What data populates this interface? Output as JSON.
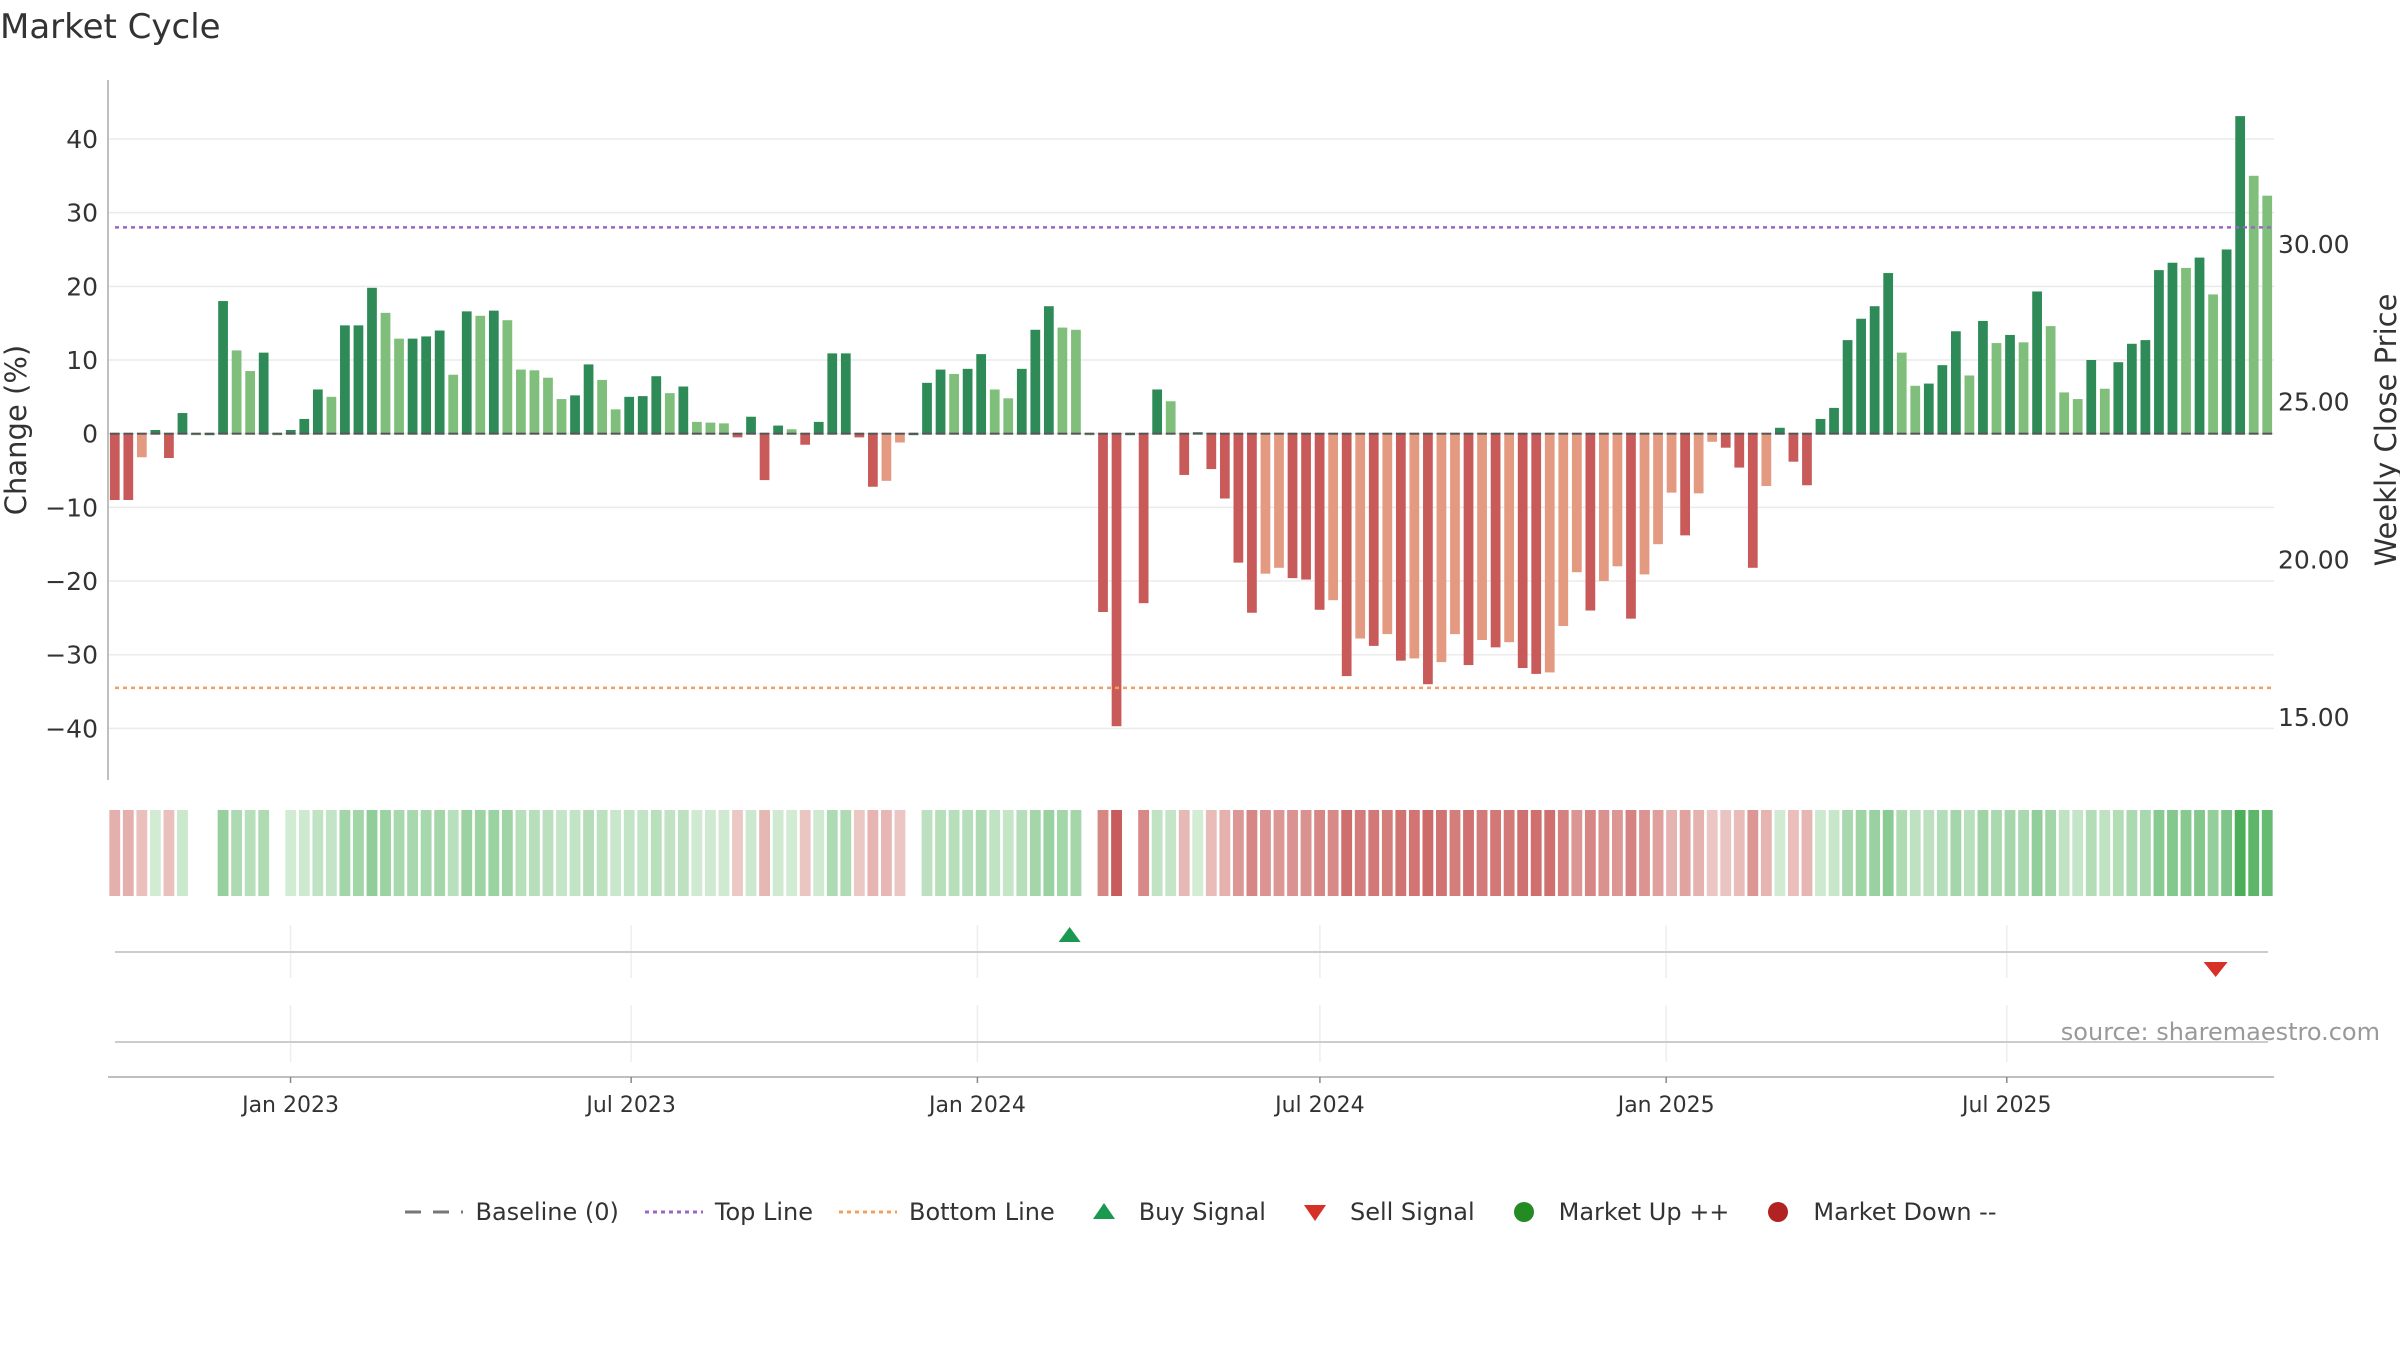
{
  "chart_data": {
    "type": "bar",
    "title": "Market Cycle",
    "ylabel": "Change (%)",
    "y2label": "Weekly Close Price",
    "ylim": [
      -47,
      48
    ],
    "y_ticks": [
      -40,
      -30,
      -20,
      -10,
      0,
      10,
      20,
      30,
      40
    ],
    "y2lim": [
      13.0,
      35.2
    ],
    "y2_ticks": [
      "15.00",
      "20.00",
      "25.00",
      "30.00"
    ],
    "top_line": 28,
    "bottom_line": -34.5,
    "x_ticks": [
      {
        "label": "Jan 2023",
        "date": "2023-01-01"
      },
      {
        "label": "Jul 2023",
        "date": "2023-07-01"
      },
      {
        "label": "Jan 2024",
        "date": "2024-01-01"
      },
      {
        "label": "Jul 2024",
        "date": "2024-07-01"
      },
      {
        "label": "Jan 2025",
        "date": "2025-01-01"
      },
      {
        "label": "Jul 2025",
        "date": "2025-07-01"
      }
    ],
    "start_date": "2022-09-26",
    "end_date": "2025-11-20",
    "values": [
      -9,
      -9,
      -3.2,
      0.5,
      -3.3,
      2.8,
      0,
      0,
      18,
      11.3,
      8.5,
      11,
      0,
      0.5,
      2,
      6,
      5,
      14.7,
      14.7,
      19.8,
      16.4,
      12.9,
      12.9,
      13.2,
      14,
      8,
      16.6,
      16,
      16.7,
      15.4,
      8.7,
      8.6,
      7.6,
      4.7,
      5.2,
      9.4,
      7.3,
      3.3,
      5,
      5.1,
      7.8,
      5.5,
      6.4,
      1.6,
      1.5,
      1.4,
      -0.5,
      2.3,
      -6.3,
      1.1,
      0.6,
      -1.5,
      1.6,
      10.9,
      10.9,
      -0.5,
      -7.2,
      -6.4,
      -1.2,
      0,
      6.9,
      8.7,
      8.1,
      8.8,
      10.8,
      6,
      4.8,
      8.8,
      14.1,
      17.3,
      14.4,
      14.1,
      0,
      -24.2,
      -39.7,
      0,
      -23,
      6,
      4.4,
      -5.6,
      0.2,
      -4.8,
      -8.8,
      -17.5,
      -24.3,
      -19,
      -18.2,
      -19.6,
      -19.8,
      -23.9,
      -22.6,
      -32.9,
      -27.8,
      -28.8,
      -27.2,
      -30.8,
      -30.5,
      -34,
      -31,
      -27.2,
      -31.4,
      -28,
      -29,
      -28.3,
      -31.8,
      -32.6,
      -32.4,
      -26.1,
      -18.8,
      -24,
      -20,
      -18,
      -25.1,
      -19.1,
      -15,
      -8,
      -13.8,
      -8.1,
      -1.1,
      -1.9,
      -4.6,
      -18.2,
      -7.1,
      0.8,
      -3.8,
      -7,
      2,
      3.5,
      12.7,
      15.6,
      17.3,
      21.8,
      11,
      6.5,
      6.8,
      9.3,
      13.9,
      7.9,
      15.3,
      12.3,
      13.4,
      12.4,
      19.3,
      14.6,
      5.6,
      4.7,
      10,
      6.1,
      9.7,
      12.2,
      12.7,
      22.2,
      23.2,
      22.5,
      23.9,
      18.9,
      25,
      43.1,
      35,
      32.3
    ],
    "buy_signals": [
      "2024-02-19"
    ],
    "sell_signals": [
      "2025-10-20"
    ],
    "source": "source: sharemaestro.com",
    "colors": {
      "up_strong": "#2e8b57",
      "up_light": "#7fbf7b",
      "down_strong": "#c85a5a",
      "down_light": "#e39a80",
      "top_line": "#9966cc",
      "bottom_line": "#f0a060",
      "buy": "#1a9850",
      "sell": "#d73027",
      "market_up": "#228b22",
      "market_down": "#b22222"
    },
    "legend": [
      {
        "key": "baseline",
        "label": "Baseline (0)"
      },
      {
        "key": "top",
        "label": "Top Line"
      },
      {
        "key": "bottom",
        "label": "Bottom Line"
      },
      {
        "key": "buy",
        "label": "Buy Signal"
      },
      {
        "key": "sell",
        "label": "Sell Signal"
      },
      {
        "key": "mup",
        "label": "Market Up ++"
      },
      {
        "key": "mdown",
        "label": "Market Down --"
      }
    ]
  }
}
